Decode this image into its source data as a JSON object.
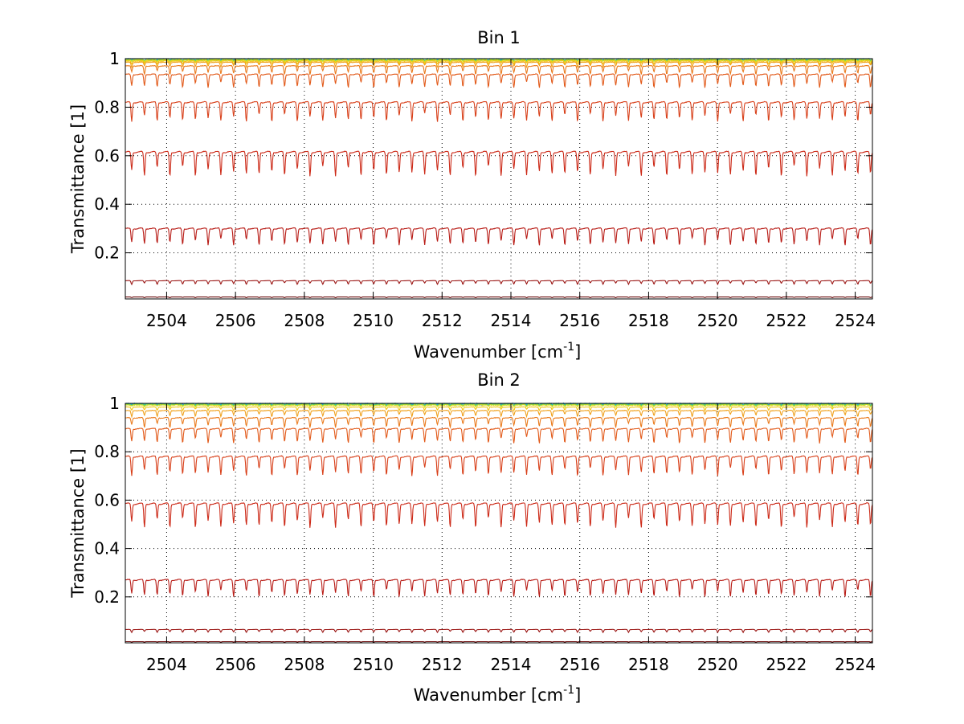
{
  "chart_data": [
    {
      "type": "line",
      "title": "Bin 1",
      "xlabel": "Wavenumber [cm",
      "xlabel_sup": "-1",
      "xlabel_tail": "]",
      "ylabel": "Transmittance [1]",
      "xlim": [
        2502.8,
        2524.5
      ],
      "ylim": [
        0.01,
        1.0
      ],
      "xticks": [
        2504,
        2506,
        2508,
        2510,
        2512,
        2514,
        2516,
        2518,
        2520,
        2522,
        2524
      ],
      "xtick_labels": [
        "2504",
        "2506",
        "2508",
        "2510",
        "2512",
        "2514",
        "2516",
        "2518",
        "2520",
        "2522",
        "2524"
      ],
      "yticks": [
        0.2,
        0.4,
        0.6,
        0.8,
        1.0
      ],
      "ytick_labels": [
        "0.2",
        "0.4",
        "0.6",
        "0.8",
        "1"
      ],
      "grid": true,
      "line_period_cm1": 0.37,
      "series": [
        {
          "baseline": 0.997,
          "depth": 0.004,
          "color": "#1f9fd8",
          "noise": 0.003
        },
        {
          "baseline": 0.996,
          "depth": 0.005,
          "color": "#30c0b0",
          "noise": 0.003
        },
        {
          "baseline": 0.995,
          "depth": 0.006,
          "color": "#7dd34a",
          "noise": 0.002
        },
        {
          "baseline": 0.994,
          "depth": 0.008,
          "color": "#d8e020",
          "noise": 0.002
        },
        {
          "baseline": 0.99,
          "depth": 0.012,
          "color": "#f2c40f",
          "noise": 0.001
        },
        {
          "baseline": 0.985,
          "depth": 0.02,
          "color": "#f0a01a",
          "noise": 0.001
        },
        {
          "baseline": 0.97,
          "depth": 0.035,
          "color": "#ea7a1c",
          "noise": 0.001
        },
        {
          "baseline": 0.935,
          "depth": 0.055,
          "color": "#e25a1a",
          "noise": 0.001
        },
        {
          "baseline": 0.82,
          "depth": 0.08,
          "color": "#d8401a",
          "noise": 0.001
        },
        {
          "baseline": 0.615,
          "depth": 0.1,
          "color": "#cc2a18",
          "noise": 0.001
        },
        {
          "baseline": 0.3,
          "depth": 0.07,
          "color": "#b81c16",
          "noise": 0.001
        },
        {
          "baseline": 0.085,
          "depth": 0.015,
          "color": "#9a1412",
          "noise": 0.0
        },
        {
          "baseline": 0.018,
          "depth": 0.003,
          "color": "#6a0a0a",
          "noise": 0.0
        }
      ]
    },
    {
      "type": "line",
      "title": "Bin 2",
      "xlabel": "Wavenumber [cm",
      "xlabel_sup": "-1",
      "xlabel_tail": "]",
      "ylabel": "Transmittance [1]",
      "xlim": [
        2502.8,
        2524.5
      ],
      "ylim": [
        0.01,
        1.0
      ],
      "xticks": [
        2504,
        2506,
        2508,
        2510,
        2512,
        2514,
        2516,
        2518,
        2520,
        2522,
        2524
      ],
      "xtick_labels": [
        "2504",
        "2506",
        "2508",
        "2510",
        "2512",
        "2514",
        "2516",
        "2518",
        "2520",
        "2522",
        "2524"
      ],
      "yticks": [
        0.2,
        0.4,
        0.6,
        0.8,
        1.0
      ],
      "ytick_labels": [
        "0.2",
        "0.4",
        "0.6",
        "0.8",
        "1"
      ],
      "grid": true,
      "line_period_cm1": 0.37,
      "series": [
        {
          "baseline": 0.998,
          "depth": 0.004,
          "color": "#1f7fd8",
          "noise": 0.004
        },
        {
          "baseline": 0.997,
          "depth": 0.005,
          "color": "#20b8c8",
          "noise": 0.003
        },
        {
          "baseline": 0.996,
          "depth": 0.006,
          "color": "#60d060",
          "noise": 0.002
        },
        {
          "baseline": 0.993,
          "depth": 0.008,
          "color": "#d8e020",
          "noise": 0.002
        },
        {
          "baseline": 0.985,
          "depth": 0.015,
          "color": "#f2c40f",
          "noise": 0.001
        },
        {
          "baseline": 0.97,
          "depth": 0.025,
          "color": "#f0a01a",
          "noise": 0.001
        },
        {
          "baseline": 0.94,
          "depth": 0.04,
          "color": "#ea7a1c",
          "noise": 0.001
        },
        {
          "baseline": 0.895,
          "depth": 0.06,
          "color": "#e25a1a",
          "noise": 0.001
        },
        {
          "baseline": 0.78,
          "depth": 0.08,
          "color": "#d8401a",
          "noise": 0.001
        },
        {
          "baseline": 0.585,
          "depth": 0.1,
          "color": "#cc2a18",
          "noise": 0.001
        },
        {
          "baseline": 0.27,
          "depth": 0.07,
          "color": "#b81c16",
          "noise": 0.001
        },
        {
          "baseline": 0.065,
          "depth": 0.012,
          "color": "#9a1412",
          "noise": 0.0
        },
        {
          "baseline": 0.015,
          "depth": 0.002,
          "color": "#6a0a0a",
          "noise": 0.0
        }
      ]
    }
  ]
}
